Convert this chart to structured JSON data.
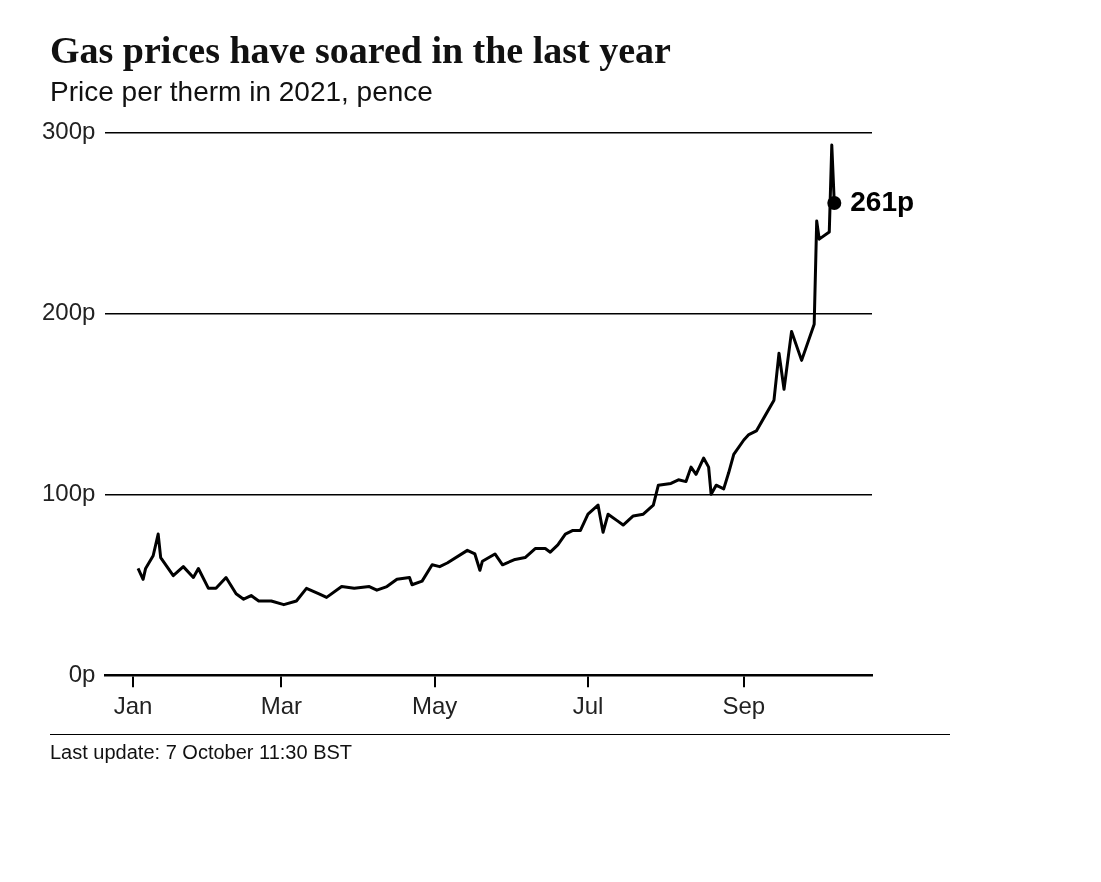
{
  "chart_data": {
    "type": "line",
    "title": "Gas prices have soared in the last year",
    "subtitle": "Price per therm in 2021, pence",
    "x": [
      "2021-01-03",
      "2021-01-05",
      "2021-01-06",
      "2021-01-09",
      "2021-01-11",
      "2021-01-12",
      "2021-01-17",
      "2021-01-21",
      "2021-01-25",
      "2021-01-27",
      "2021-01-31",
      "2021-02-03",
      "2021-02-07",
      "2021-02-11",
      "2021-02-14",
      "2021-02-17",
      "2021-02-20",
      "2021-02-25",
      "2021-03-02",
      "2021-03-07",
      "2021-03-11",
      "2021-03-16",
      "2021-03-19",
      "2021-03-25",
      "2021-03-30",
      "2021-04-05",
      "2021-04-08",
      "2021-04-12",
      "2021-04-16",
      "2021-04-21",
      "2021-04-22",
      "2021-04-26",
      "2021-04-30",
      "2021-05-03",
      "2021-05-06",
      "2021-05-14",
      "2021-05-17",
      "2021-05-19",
      "2021-05-20",
      "2021-05-25",
      "2021-05-28",
      "2021-06-02",
      "2021-06-06",
      "2021-06-10",
      "2021-06-14",
      "2021-06-16",
      "2021-06-19",
      "2021-06-22",
      "2021-06-25",
      "2021-06-28",
      "2021-07-01",
      "2021-07-05",
      "2021-07-07",
      "2021-07-09",
      "2021-07-13",
      "2021-07-15",
      "2021-07-19",
      "2021-07-23",
      "2021-07-27",
      "2021-07-29",
      "2021-08-03",
      "2021-08-06",
      "2021-08-09",
      "2021-08-11",
      "2021-08-13",
      "2021-08-16",
      "2021-08-18",
      "2021-08-19",
      "2021-08-21",
      "2021-08-24",
      "2021-08-26",
      "2021-08-28",
      "2021-09-01",
      "2021-09-03",
      "2021-09-06",
      "2021-09-13",
      "2021-09-15",
      "2021-09-17",
      "2021-09-20",
      "2021-09-24",
      "2021-09-29",
      "2021-09-30",
      "2021-10-01",
      "2021-10-05",
      "2021-10-06",
      "2021-10-07"
    ],
    "series": [
      {
        "color": "#000000",
        "values": [
          59,
          53,
          59,
          66,
          78,
          65,
          55,
          60,
          54,
          59,
          48,
          48,
          54,
          45,
          42,
          44,
          41,
          41,
          39,
          41,
          48,
          45,
          43,
          49,
          48,
          49,
          47,
          49,
          53,
          54,
          50,
          52,
          61,
          60,
          62,
          69,
          67,
          58,
          63,
          67,
          61,
          64,
          65,
          70,
          70,
          68,
          72,
          78,
          80,
          80,
          89,
          94,
          79,
          89,
          85,
          83,
          88,
          89,
          94,
          105,
          106,
          108,
          107,
          115,
          111,
          120,
          115,
          100,
          105,
          103,
          112,
          122,
          130,
          133,
          135,
          152,
          178,
          158,
          190,
          174,
          194,
          251,
          241,
          245,
          293,
          261
        ]
      }
    ],
    "xlim": [
      "2020-12-21",
      "2021-10-22"
    ],
    "xticks": [
      {
        "value": "2021-01-01",
        "label": "Jan"
      },
      {
        "value": "2021-03-01",
        "label": "Mar"
      },
      {
        "value": "2021-05-01",
        "label": "May"
      },
      {
        "value": "2021-07-01",
        "label": "Jul"
      },
      {
        "value": "2021-09-01",
        "label": "Sep"
      }
    ],
    "ylim": [
      0,
      300
    ],
    "yticks": [
      {
        "value": 0,
        "label": "0p"
      },
      {
        "value": 100,
        "label": "100p"
      },
      {
        "value": 200,
        "label": "200p"
      },
      {
        "value": 300,
        "label": "300p"
      }
    ],
    "grid": "y",
    "legend": false,
    "marker": "none",
    "line_style": "solid",
    "annotations": [
      {
        "text": "261p",
        "x": "2021-10-07",
        "y": 261
      },
      "Last update: 7 October 11:30 BST"
    ]
  }
}
